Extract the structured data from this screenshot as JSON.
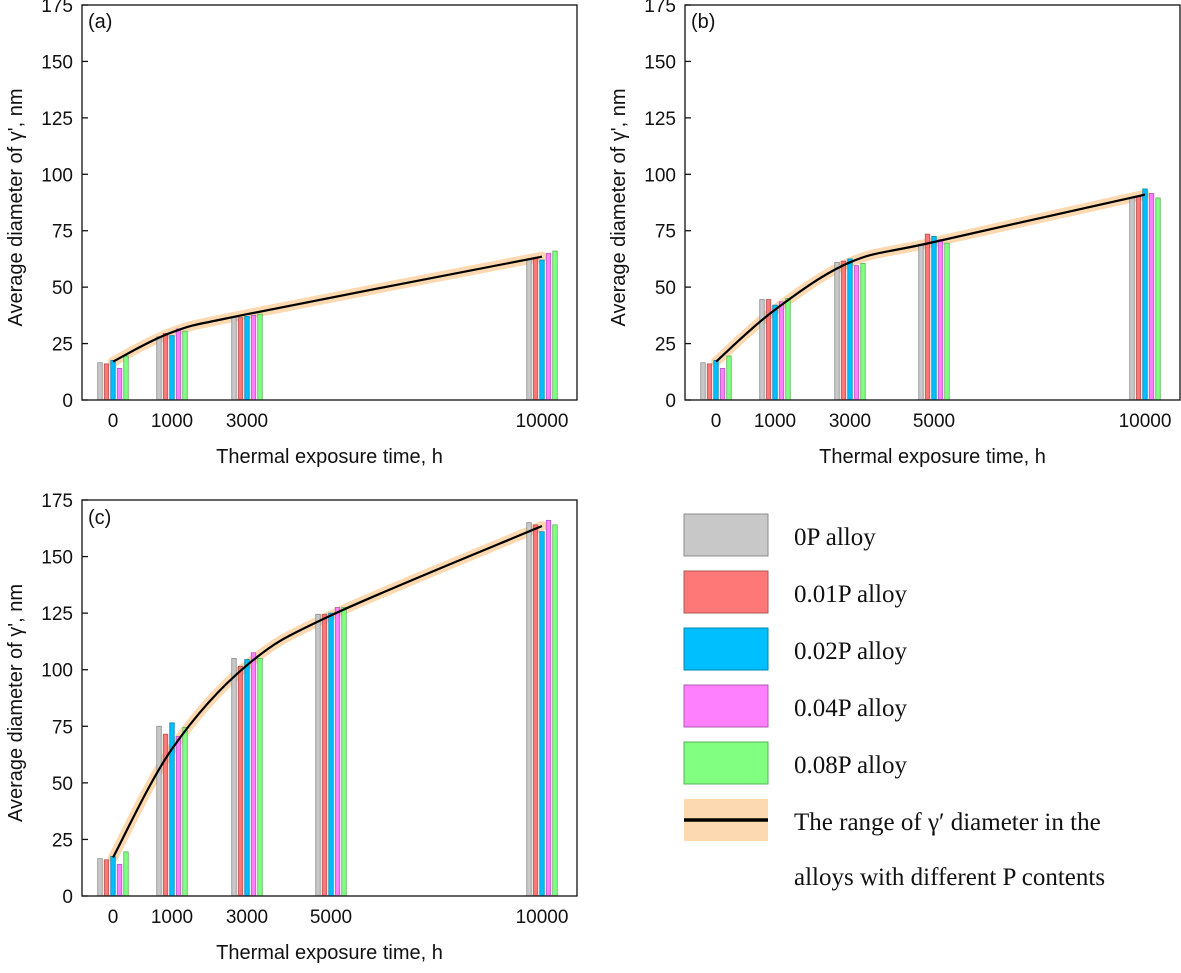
{
  "colors": {
    "0P alloy": "#c8c8c8",
    "0.01P alloy": "#ff7878",
    "0.02P alloy": "#00bfff",
    "0.04P alloy": "#ff80ff",
    "0.08P alloy": "#80ff80",
    "range_band": "#fcd9b0",
    "fit_line": "#000000"
  },
  "legend": {
    "items": [
      "0P alloy",
      "0.01P alloy",
      "0.02P alloy",
      "0.04P alloy",
      "0.08P alloy"
    ],
    "range_label_line1": "The range of γ′ diameter in the",
    "range_label_line2": "alloys with different P contents"
  },
  "chart_data": [
    {
      "type": "bar",
      "panel_label": "(a)",
      "xlabel": "Thermal exposure time, h",
      "ylabel": "Average diameter of γ', nm",
      "ylim": [
        0,
        175
      ],
      "yticks": [
        0,
        25,
        50,
        75,
        100,
        125,
        150,
        175
      ],
      "categories": [
        "0",
        "1000",
        "3000",
        "10000"
      ],
      "series": [
        {
          "name": "0P alloy",
          "values": [
            16.5,
            28,
            36.5,
            62.5
          ]
        },
        {
          "name": "0.01P alloy",
          "values": [
            16,
            29.5,
            36.5,
            63
          ]
        },
        {
          "name": "0.02P alloy",
          "values": [
            17.5,
            28.5,
            37,
            62
          ]
        },
        {
          "name": "0.04P alloy",
          "values": [
            14,
            31.5,
            37.5,
            65
          ]
        },
        {
          "name": "0.08P alloy",
          "values": [
            19.5,
            30.5,
            38,
            66
          ]
        }
      ],
      "fit_curve": {
        "x": [
          0,
          1000,
          3000,
          10000
        ],
        "y": [
          17,
          30,
          38,
          63.5
        ]
      },
      "legend": "right"
    },
    {
      "type": "bar",
      "panel_label": "(b)",
      "xlabel": "Thermal exposure time, h",
      "ylabel": "Average diameter of γ', nm",
      "ylim": [
        0,
        175
      ],
      "yticks": [
        0,
        25,
        50,
        75,
        100,
        125,
        150,
        175
      ],
      "categories": [
        "0",
        "1000",
        "3000",
        "5000",
        "10000"
      ],
      "series": [
        {
          "name": "0P alloy",
          "values": [
            16.5,
            44.5,
            61,
            69,
            89.5
          ]
        },
        {
          "name": "0.01P alloy",
          "values": [
            16,
            44.5,
            61.5,
            73.5,
            90
          ]
        },
        {
          "name": "0.02P alloy",
          "values": [
            17.5,
            42,
            62.5,
            72.5,
            93.5
          ]
        },
        {
          "name": "0.04P alloy",
          "values": [
            14,
            43.5,
            59.5,
            71,
            91.5
          ]
        },
        {
          "name": "0.08P alloy",
          "values": [
            19.5,
            45,
            60.5,
            69.5,
            89.5
          ]
        }
      ],
      "fit_curve": {
        "x": [
          0,
          1000,
          3000,
          5000,
          10000
        ],
        "y": [
          17,
          40,
          61,
          70,
          91
        ]
      },
      "legend": "right"
    },
    {
      "type": "bar",
      "panel_label": "(c)",
      "xlabel": "Thermal exposure time, h",
      "ylabel": "Average diameter of γ', nm",
      "ylim": [
        0,
        175
      ],
      "yticks": [
        0,
        25,
        50,
        75,
        100,
        125,
        150,
        175
      ],
      "categories": [
        "0",
        "1000",
        "3000",
        "5000",
        "10000"
      ],
      "series": [
        {
          "name": "0P alloy",
          "values": [
            16.5,
            75,
            105,
            124.5,
            165
          ]
        },
        {
          "name": "0.01P alloy",
          "values": [
            16,
            71.5,
            101.5,
            124.5,
            164
          ]
        },
        {
          "name": "0.02P alloy",
          "values": [
            17.5,
            76.5,
            104.5,
            125,
            161
          ]
        },
        {
          "name": "0.04P alloy",
          "values": [
            14,
            70.5,
            107.5,
            127.5,
            166
          ]
        },
        {
          "name": "0.08P alloy",
          "values": [
            19.5,
            74.5,
            105,
            127.5,
            164
          ]
        }
      ],
      "fit_curve": {
        "x": [
          0,
          1000,
          3000,
          5000,
          10000
        ],
        "y": [
          17,
          65,
          102,
          124,
          163.5
        ]
      },
      "legend": "right"
    }
  ]
}
